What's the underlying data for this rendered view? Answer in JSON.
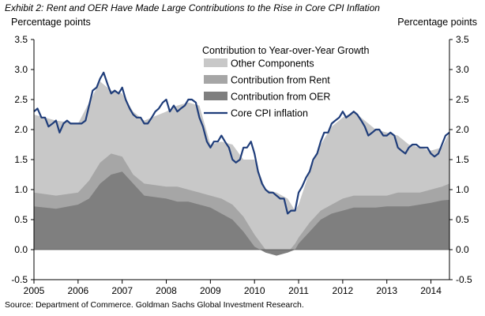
{
  "chart_data": {
    "type": "area",
    "title": "Exhibit 2: Rent and OER Have Made Large Contributions to the Rise in Core CPI Inflation",
    "ylabel_left": "Percentage points",
    "ylabel_right": "Percentage points",
    "source": "Source: Department of Commerce. Goldman Sachs Global Investment Research.",
    "ylim": [
      -0.5,
      3.5
    ],
    "y_ticks": [
      "-0.5",
      "0.0",
      "0.5",
      "1.0",
      "1.5",
      "2.0",
      "2.5",
      "3.0",
      "3.5"
    ],
    "x_range": [
      2005.0,
      2014.42
    ],
    "x_ticks": [
      "2005",
      "2006",
      "2007",
      "2008",
      "2009",
      "2010",
      "2011",
      "2012",
      "2013",
      "2014"
    ],
    "legend_title": "Contribution to Year-over-Year Growth",
    "series": [
      {
        "name": "Other Components",
        "kind": "area",
        "color": "#c8c8c8",
        "x": [
          2005.0,
          2005.5,
          2006.0,
          2006.25,
          2006.5,
          2006.75,
          2007.0,
          2007.25,
          2007.5,
          2008.0,
          2008.25,
          2008.5,
          2008.75,
          2009.0,
          2009.25,
          2009.5,
          2009.75,
          2010.0,
          2010.25,
          2010.5,
          2010.75,
          2010.92,
          2011.0,
          2011.25,
          2011.5,
          2011.75,
          2012.0,
          2012.25,
          2012.5,
          2012.75,
          2013.0,
          2013.25,
          2013.5,
          2013.75,
          2014.0,
          2014.25,
          2014.42
        ],
        "values": [
          2.25,
          2.15,
          2.1,
          2.45,
          2.8,
          2.65,
          2.6,
          2.3,
          2.15,
          2.3,
          2.4,
          2.45,
          2.4,
          1.75,
          1.8,
          1.75,
          1.5,
          1.5,
          1.0,
          0.95,
          0.85,
          0.65,
          0.75,
          1.3,
          1.75,
          2.05,
          2.2,
          2.3,
          2.15,
          2.0,
          1.95,
          1.9,
          1.75,
          1.7,
          1.65,
          1.7,
          1.95
        ]
      },
      {
        "name": "Contribution from Rent",
        "kind": "area",
        "color": "#a6a6a6",
        "x": [
          2005.0,
          2005.5,
          2006.0,
          2006.25,
          2006.5,
          2006.75,
          2007.0,
          2007.25,
          2007.5,
          2008.0,
          2008.25,
          2008.5,
          2008.75,
          2009.0,
          2009.25,
          2009.5,
          2009.75,
          2010.0,
          2010.25,
          2010.5,
          2010.75,
          2010.92,
          2011.0,
          2011.25,
          2011.5,
          2011.75,
          2012.0,
          2012.25,
          2012.5,
          2012.75,
          2013.0,
          2013.25,
          2013.5,
          2013.75,
          2014.0,
          2014.25,
          2014.42
        ],
        "values": [
          0.95,
          0.9,
          0.95,
          1.15,
          1.45,
          1.6,
          1.55,
          1.25,
          1.1,
          1.05,
          1.05,
          1.0,
          0.95,
          0.9,
          0.85,
          0.75,
          0.55,
          0.25,
          0.0,
          -0.05,
          -0.05,
          0.1,
          0.2,
          0.45,
          0.65,
          0.75,
          0.85,
          0.9,
          0.9,
          0.9,
          0.9,
          0.95,
          0.95,
          0.95,
          1.0,
          1.05,
          1.1
        ]
      },
      {
        "name": "Contribution from OER",
        "kind": "area",
        "color": "#7f7f7f",
        "x": [
          2005.0,
          2005.5,
          2006.0,
          2006.25,
          2006.5,
          2006.75,
          2007.0,
          2007.25,
          2007.5,
          2008.0,
          2008.25,
          2008.5,
          2008.75,
          2009.0,
          2009.25,
          2009.5,
          2009.75,
          2010.0,
          2010.25,
          2010.5,
          2010.75,
          2010.92,
          2011.0,
          2011.25,
          2011.5,
          2011.75,
          2012.0,
          2012.25,
          2012.5,
          2012.75,
          2013.0,
          2013.25,
          2013.5,
          2013.75,
          2014.0,
          2014.25,
          2014.42
        ],
        "values": [
          0.72,
          0.68,
          0.75,
          0.85,
          1.1,
          1.25,
          1.3,
          1.1,
          0.9,
          0.85,
          0.8,
          0.8,
          0.75,
          0.7,
          0.6,
          0.5,
          0.3,
          0.05,
          -0.05,
          -0.1,
          -0.05,
          0.0,
          0.1,
          0.3,
          0.5,
          0.6,
          0.65,
          0.7,
          0.7,
          0.7,
          0.72,
          0.72,
          0.72,
          0.75,
          0.78,
          0.82,
          0.83
        ]
      },
      {
        "name": "Core CPI inflation",
        "kind": "line",
        "color": "#1f3d7a",
        "x": [
          2005.0,
          2005.08,
          2005.17,
          2005.25,
          2005.33,
          2005.42,
          2005.5,
          2005.58,
          2005.67,
          2005.75,
          2005.83,
          2005.92,
          2006.0,
          2006.08,
          2006.17,
          2006.25,
          2006.33,
          2006.42,
          2006.5,
          2006.58,
          2006.67,
          2006.75,
          2006.83,
          2006.92,
          2007.0,
          2007.08,
          2007.17,
          2007.25,
          2007.33,
          2007.42,
          2007.5,
          2007.58,
          2007.67,
          2007.75,
          2007.83,
          2007.92,
          2008.0,
          2008.08,
          2008.17,
          2008.25,
          2008.33,
          2008.42,
          2008.5,
          2008.58,
          2008.67,
          2008.75,
          2008.83,
          2008.92,
          2009.0,
          2009.08,
          2009.17,
          2009.25,
          2009.33,
          2009.42,
          2009.5,
          2009.58,
          2009.67,
          2009.75,
          2009.83,
          2009.92,
          2010.0,
          2010.08,
          2010.17,
          2010.25,
          2010.33,
          2010.42,
          2010.5,
          2010.58,
          2010.67,
          2010.75,
          2010.83,
          2010.92,
          2011.0,
          2011.08,
          2011.17,
          2011.25,
          2011.33,
          2011.42,
          2011.5,
          2011.58,
          2011.67,
          2011.75,
          2011.83,
          2011.92,
          2012.0,
          2012.08,
          2012.17,
          2012.25,
          2012.33,
          2012.42,
          2012.5,
          2012.58,
          2012.67,
          2012.75,
          2012.83,
          2012.92,
          2013.0,
          2013.08,
          2013.17,
          2013.25,
          2013.33,
          2013.42,
          2013.5,
          2013.58,
          2013.67,
          2013.75,
          2013.83,
          2013.92,
          2014.0,
          2014.08,
          2014.17,
          2014.25,
          2014.33,
          2014.42
        ],
        "values": [
          2.3,
          2.35,
          2.2,
          2.2,
          2.05,
          2.1,
          2.15,
          1.95,
          2.1,
          2.15,
          2.1,
          2.1,
          2.1,
          2.1,
          2.15,
          2.4,
          2.65,
          2.7,
          2.85,
          2.95,
          2.75,
          2.6,
          2.65,
          2.6,
          2.7,
          2.5,
          2.35,
          2.25,
          2.2,
          2.2,
          2.1,
          2.1,
          2.2,
          2.3,
          2.35,
          2.45,
          2.5,
          2.3,
          2.4,
          2.3,
          2.35,
          2.4,
          2.5,
          2.5,
          2.45,
          2.2,
          2.05,
          1.8,
          1.7,
          1.8,
          1.8,
          1.9,
          1.8,
          1.7,
          1.5,
          1.45,
          1.5,
          1.7,
          1.7,
          1.8,
          1.6,
          1.3,
          1.1,
          1.0,
          0.95,
          0.95,
          0.9,
          0.85,
          0.85,
          0.6,
          0.65,
          0.65,
          0.95,
          1.05,
          1.2,
          1.3,
          1.5,
          1.6,
          1.8,
          1.95,
          1.95,
          2.1,
          2.15,
          2.2,
          2.3,
          2.2,
          2.25,
          2.3,
          2.25,
          2.15,
          2.05,
          1.9,
          1.95,
          2.0,
          2.0,
          1.9,
          1.9,
          1.95,
          1.9,
          1.7,
          1.65,
          1.6,
          1.7,
          1.75,
          1.75,
          1.7,
          1.7,
          1.7,
          1.6,
          1.55,
          1.6,
          1.75,
          1.9,
          1.95
        ]
      }
    ]
  }
}
